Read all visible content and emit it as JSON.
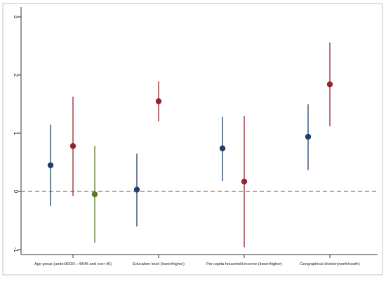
{
  "chart_data": {
    "type": "scatter",
    "subtype": "coefficient plot with confidence intervals",
    "title": "",
    "xlabel": "",
    "ylabel": "",
    "ylim": [
      -1.1,
      3.05
    ],
    "yticks": [
      -1,
      0,
      1,
      2,
      3
    ],
    "reference_line": {
      "y": 0,
      "style": "dashed",
      "color": "#c94f5a"
    },
    "categories": [
      "Age group (under30/30—44/45 and over 45)",
      "Education level (lower/higher)",
      "Per capita household income (lower/higher)",
      "Geographical division(north/south)"
    ],
    "points": [
      {
        "category": 0,
        "slot": 0,
        "estimate": 0.45,
        "lower": -0.25,
        "upper": 1.15,
        "color": "#1f3f66"
      },
      {
        "category": 0,
        "slot": 1,
        "estimate": 0.78,
        "lower": -0.08,
        "upper": 1.63,
        "color": "#94252d"
      },
      {
        "category": 0,
        "slot": 2,
        "estimate": -0.05,
        "lower": -0.88,
        "upper": 0.78,
        "color": "#5a7a2a"
      },
      {
        "category": 1,
        "slot": 0,
        "estimate": 0.03,
        "lower": -0.6,
        "upper": 0.65,
        "color": "#1f3f66"
      },
      {
        "category": 1,
        "slot": 1,
        "estimate": 1.55,
        "lower": 1.2,
        "upper": 1.89,
        "color": "#94252d"
      },
      {
        "category": 2,
        "slot": 0,
        "estimate": 0.74,
        "lower": 0.18,
        "upper": 1.28,
        "color": "#1f3f66"
      },
      {
        "category": 2,
        "slot": 1,
        "estimate": 0.17,
        "lower": -0.96,
        "upper": 1.3,
        "color": "#94252d"
      },
      {
        "category": 3,
        "slot": 0,
        "estimate": 0.94,
        "lower": 0.37,
        "upper": 1.5,
        "color": "#1f3f66"
      },
      {
        "category": 3,
        "slot": 1,
        "estimate": 1.84,
        "lower": 1.12,
        "upper": 2.56,
        "color": "#94252d"
      }
    ],
    "grid": false,
    "legend": "none"
  }
}
